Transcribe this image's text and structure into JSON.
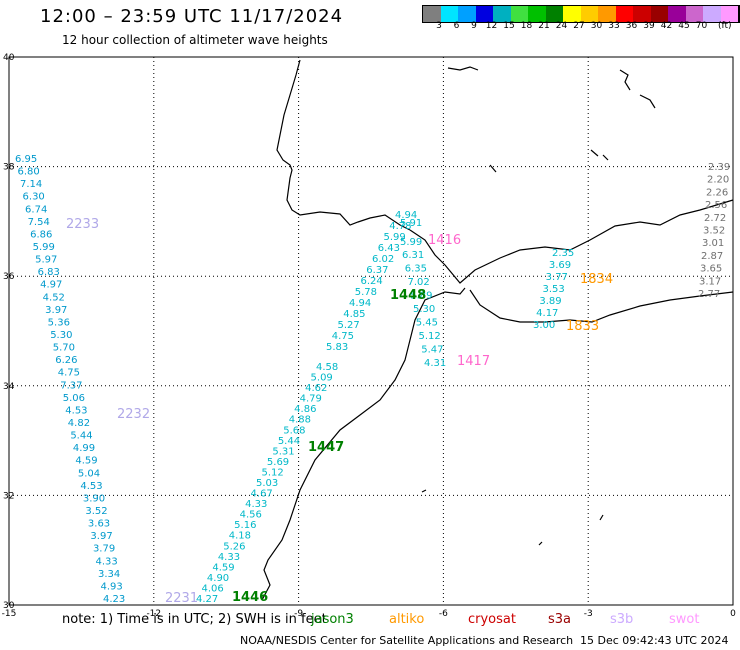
{
  "header": {
    "title": "12:00 – 23:59 UTC 11/17/2024",
    "subtitle": "12 hour collection of altimeter wave heights"
  },
  "colorbar": {
    "colors": [
      "#7f7f7f",
      "#00e5ff",
      "#00a0ff",
      "#0000e0",
      "#00b0c0",
      "#40e040",
      "#00c000",
      "#008000",
      "#ffff00",
      "#ffcc00",
      "#ff9900",
      "#ff0000",
      "#cc0000",
      "#990000",
      "#990099",
      "#cc66cc",
      "#ccaaff",
      "#ff99ff",
      "#000000"
    ],
    "labels": [
      "3",
      "6",
      "9",
      "12",
      "15",
      "18",
      "21",
      "24",
      "27",
      "30",
      "33",
      "36",
      "39",
      "42",
      "45",
      "70"
    ],
    "units": "(ft)"
  },
  "axes": {
    "lon_ticks": [
      "-15",
      "-12",
      "-9",
      "-6",
      "-3",
      "0"
    ],
    "lat_ticks": [
      "40",
      "38",
      "36",
      "34",
      "32",
      "30"
    ]
  },
  "map_labels": {
    "pass_times": [
      {
        "text": "2233",
        "color": "#b0a8e8"
      },
      {
        "text": "2232",
        "color": "#b0a8e8"
      },
      {
        "text": "2231",
        "color": "#b0a8e8"
      },
      {
        "text": "1446",
        "color": "#008000"
      },
      {
        "text": "1447",
        "color": "#008000"
      },
      {
        "text": "1448",
        "color": "#008000"
      },
      {
        "text": "1416",
        "color": "#ff66cc"
      },
      {
        "text": "1417",
        "color": "#ff66cc"
      },
      {
        "text": "1834",
        "color": "#ff9900"
      },
      {
        "text": "1833",
        "color": "#ff9900"
      }
    ],
    "track_west": [
      "6.95",
      "6.80",
      "7.14",
      "6.30",
      "6.74",
      "7.54",
      "6.86",
      "5.99",
      "5.97",
      "6.83",
      "4.97",
      "4.52",
      "3.97",
      "5.36",
      "5.30",
      "5.70",
      "6.26",
      "4.75",
      "7.37",
      "5.06",
      "4.53",
      "4.82",
      "5.44",
      "4.99",
      "4.59",
      "5.04",
      "4.53",
      "3.90",
      "3.52",
      "3.63",
      "3.97",
      "3.79",
      "4.33",
      "3.34",
      "4.93",
      "4.23"
    ],
    "track_jason": [
      "4.27",
      "4.06",
      "4.90",
      "4.59",
      "4.33",
      "5.26",
      "4.18",
      "5.16",
      "4.56",
      "4.33",
      "4.67",
      "5.03",
      "5.12",
      "5.69",
      "5.31",
      "5.44",
      "5.68",
      "4.88",
      "4.86",
      "4.79",
      "4.62",
      "5.09",
      "4.58"
    ],
    "track_jason2": [
      "5.83",
      "4.75",
      "5.27",
      "4.85",
      "4.94",
      "5.78",
      "6.24",
      "6.37",
      "6.02",
      "6.43",
      "5.99",
      "4.78",
      "4.94"
    ],
    "track_swot": [
      "6.31",
      "6.35",
      "7.02",
      "5.89",
      "5.30",
      "5.45",
      "5.12",
      "5.47",
      "4.31"
    ],
    "track_east": [
      "2.35",
      "3.69",
      "3.77",
      "3.53",
      "3.89",
      "4.17",
      "3.00"
    ],
    "track_right": [
      "2.39",
      "2.20",
      "2.26",
      "2.56",
      "2.72",
      "3.52",
      "3.01",
      "2.87",
      "3.65",
      "3.17",
      "2.77"
    ],
    "inset_values": [
      "5.91",
      "5.99"
    ]
  },
  "footer": {
    "note": "note:  1) Time is in UTC; 2) SWH is in feet",
    "satellites": [
      {
        "name": "jason3",
        "color": "#008000"
      },
      {
        "name": "altiko",
        "color": "#ff9900"
      },
      {
        "name": "cryosat",
        "color": "#cc0000"
      },
      {
        "name": "s3a",
        "color": "#990000"
      },
      {
        "name": "s3b",
        "color": "#ccaaff"
      },
      {
        "name": "swot",
        "color": "#ff99ff"
      }
    ],
    "credit": "NOAA/NESDIS Center for Satellite Applications and Research",
    "timestamp": "15 Dec 09:42:43 UTC 2024"
  }
}
